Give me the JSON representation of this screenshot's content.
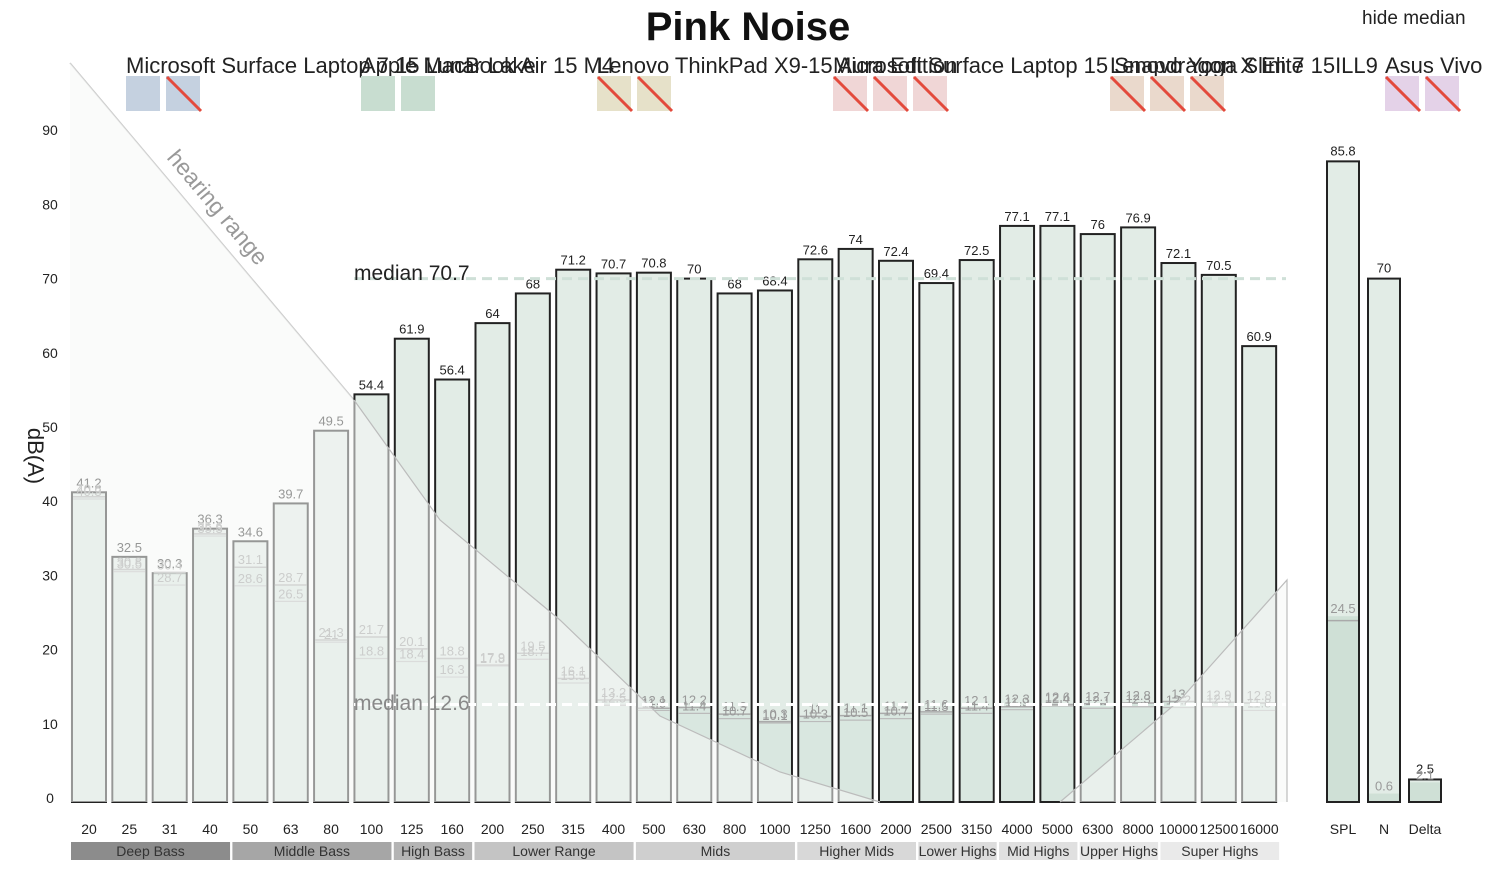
{
  "controls": {
    "hide_median": "hide median"
  },
  "chart_data": {
    "type": "bar",
    "title": "Pink Noise",
    "ylabel": "dB(A)",
    "ylim": [
      0,
      95
    ],
    "yticks": [
      0,
      10,
      20,
      30,
      40,
      50,
      60,
      70,
      80,
      90
    ],
    "categories": [
      "20",
      "25",
      "31",
      "40",
      "50",
      "63",
      "80",
      "100",
      "125",
      "160",
      "200",
      "250",
      "315",
      "400",
      "500",
      "630",
      "800",
      "1000",
      "1250",
      "1600",
      "2000",
      "2500",
      "3150",
      "4000",
      "5000",
      "6300",
      "8000",
      "10000",
      "12500",
      "16000"
    ],
    "series": [
      {
        "values": [
          41.2,
          32.5,
          30.3,
          36.3,
          34.6,
          39.7,
          49.5,
          54.4,
          61.9,
          56.4,
          64,
          68,
          71.2,
          70.7,
          70.8,
          70,
          68,
          68.4,
          72.6,
          74,
          72.4,
          69.4,
          72.5,
          77.1,
          77.1,
          76,
          76.9,
          72.1,
          70.5,
          60.9
        ]
      },
      {
        "values": [
          40.6,
          30.8,
          30.4,
          35.6,
          31.1,
          28.7,
          21.3,
          21.7,
          20.1,
          18.8,
          17.9,
          19.5,
          16.1,
          13.2,
          12.1,
          12.2,
          11.3,
          10.3,
          11,
          11.1,
          11.4,
          11.6,
          12.1,
          12.3,
          12.6,
          12.7,
          12.8,
          13,
          12.9,
          12.8
        ]
      },
      {
        "values": [
          40.3,
          30.5,
          28.7,
          35.3,
          28.6,
          26.5,
          21,
          18.8,
          18.4,
          16.3,
          17.8,
          18.7,
          15.5,
          12.5,
          11.8,
          11.4,
          10.7,
          10.1,
          10.3,
          10.5,
          10.7,
          11.3,
          11.4,
          11.9,
          12.4,
          12.1,
          12.3,
          12.2,
          12.3,
          11.8
        ]
      }
    ],
    "summary": {
      "categories": [
        "SPL",
        "N",
        "Delta"
      ],
      "top_values": [
        85.8,
        70,
        2.5
      ],
      "low_values": [
        24.5,
        0.6,
        2.1
      ],
      "low_values_b": [
        23.9,
        null,
        null
      ]
    },
    "summary_label_text": {
      "top": [
        "85.8",
        "70",
        "2.5"
      ],
      "low": [
        "24.5",
        "0.6",
        "2.1"
      ]
    },
    "medians": [
      {
        "label": "median 70.7",
        "value": 70.7,
        "color": "#cfe0d8"
      },
      {
        "label": "median 12.6",
        "value": 12.6,
        "color": "#ffffff"
      }
    ],
    "ranges": [
      {
        "label": "Deep Bass",
        "from": 0,
        "to": 3,
        "color": "#8c8c8c"
      },
      {
        "label": "Middle Bass",
        "from": 4,
        "to": 7,
        "color": "#a6a6a6"
      },
      {
        "label": "High Bass",
        "from": 8,
        "to": 9,
        "color": "#b4b4b4"
      },
      {
        "label": "Lower Range",
        "from": 10,
        "to": 13,
        "color": "#c4c4c4"
      },
      {
        "label": "Mids",
        "from": 14,
        "to": 17,
        "color": "#cfcfcf"
      },
      {
        "label": "Higher Mids",
        "from": 18,
        "to": 20,
        "color": "#d8d8d8"
      },
      {
        "label": "Lower Highs",
        "from": 21,
        "to": 22,
        "color": "#dcdcdc"
      },
      {
        "label": "Mid Highs",
        "from": 23,
        "to": 24,
        "color": "#e0e0e0"
      },
      {
        "label": "Upper Highs",
        "from": 25,
        "to": 26,
        "color": "#e6e6e6"
      },
      {
        "label": "Super Highs",
        "from": 27,
        "to": 29,
        "color": "#eaeaea"
      }
    ],
    "hearing_range_label": "hearing range",
    "devices": [
      {
        "name": "Microsoft Surface Laptop 7 15 Lunar Lake",
        "color": "#c5d1e0",
        "swatches": [
          false,
          true
        ]
      },
      {
        "name": "Apple MacBook Air 15 M4",
        "color": "#c8ddd0",
        "swatches": [
          false,
          false
        ]
      },
      {
        "name": "Lenovo ThinkPad X9-15 Aura Edition",
        "color": "#e6e1c9",
        "swatches": [
          true,
          true
        ]
      },
      {
        "name": "Microsoft Surface Laptop 15 Snapdragon X Elite",
        "color": "#f0d6d6",
        "swatches": [
          true,
          true,
          true
        ]
      },
      {
        "name": "Lenovo Yoga Slim 7 15ILL9",
        "color": "#ead9cc",
        "swatches": [
          true,
          true,
          true
        ]
      },
      {
        "name": "Asus Vivo",
        "color": "#e4d2e8",
        "swatches": [
          true,
          true
        ]
      }
    ]
  }
}
